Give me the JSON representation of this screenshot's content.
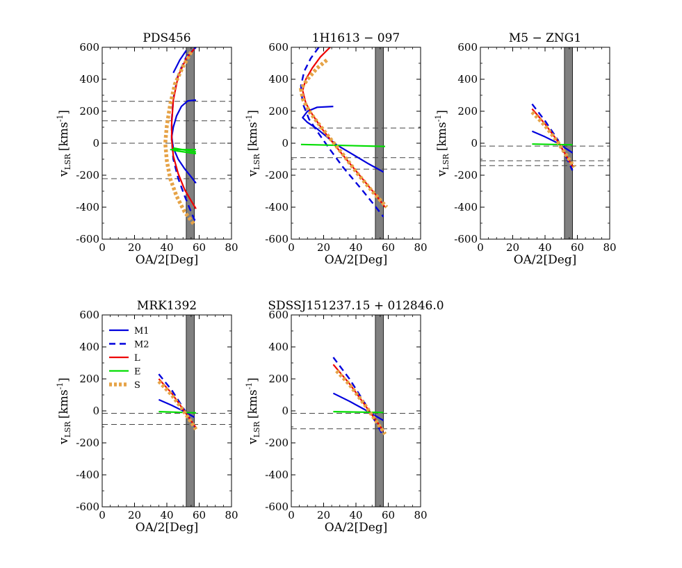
{
  "figure": {
    "background": "#ffffff"
  },
  "colors": {
    "M1": "#0000dd",
    "M2": "#0000dd",
    "L": "#ee0000",
    "E": "#00dd00",
    "S": "#e6a347",
    "band": "#808080",
    "hline": "#444444"
  },
  "legend": {
    "panel": 3,
    "items": [
      {
        "key": "M1",
        "label": "M1",
        "style": "solid"
      },
      {
        "key": "M2",
        "label": "M2",
        "style": "dashed"
      },
      {
        "key": "L",
        "label": "L",
        "style": "solid"
      },
      {
        "key": "E",
        "label": "E",
        "style": "solid"
      },
      {
        "key": "S",
        "label": "S",
        "style": "dotted"
      }
    ]
  },
  "chart_data": [
    {
      "type": "line",
      "title": "PDS456",
      "xlabel": "OA/2[Deg]",
      "ylabel": "v",
      "ylabel_sub": "LSR",
      "ylabel_unit": "[kms",
      "ylabel_sup": "-1",
      "ylabel_close": "]",
      "xlim": [
        0,
        80
      ],
      "ylim": [
        -600,
        600
      ],
      "xticks": [
        0,
        20,
        40,
        60,
        80
      ],
      "yticks": [
        -600,
        -400,
        -200,
        0,
        200,
        400,
        600
      ],
      "xticklabels": [
        "0",
        "20",
        "40",
        "60",
        "80"
      ],
      "yticklabels": [
        "-600",
        "-400",
        "-200",
        "0",
        "200",
        "400",
        "600"
      ],
      "band": [
        52,
        57
      ],
      "hlines": [
        262,
        140,
        0,
        -222
      ],
      "series": [
        {
          "key": "M1",
          "name": "M1",
          "points": [
            [
              58,
              270
            ],
            [
              53,
              265
            ],
            [
              49,
              230
            ],
            [
              46,
              170
            ],
            [
              44,
              100
            ],
            [
              43,
              40
            ],
            [
              44,
              -30
            ],
            [
              47,
              -100
            ],
            [
              51,
              -160
            ],
            [
              55,
              -210
            ],
            [
              58,
              -250
            ]
          ]
        },
        {
          "key": "M1",
          "name": "M1",
          "points": [
            [
              44,
              440
            ],
            [
              48,
              520
            ],
            [
              52,
              580
            ]
          ]
        },
        {
          "key": "M2",
          "name": "M2",
          "points": [
            [
              58,
              600
            ],
            [
              52,
              540
            ],
            [
              47,
              430
            ],
            [
              44,
              280
            ],
            [
              43,
              140
            ],
            [
              43,
              20
            ],
            [
              44,
              -100
            ],
            [
              47,
              -220
            ],
            [
              51,
              -330
            ],
            [
              55,
              -430
            ],
            [
              58,
              -500
            ]
          ]
        },
        {
          "key": "L",
          "name": "L",
          "points": [
            [
              57,
              590
            ],
            [
              52,
              530
            ],
            [
              47,
              420
            ],
            [
              44,
              270
            ],
            [
              43,
              130
            ],
            [
              43,
              20
            ],
            [
              44,
              -80
            ],
            [
              47,
              -190
            ],
            [
              51,
              -290
            ],
            [
              55,
              -360
            ],
            [
              58,
              -410
            ]
          ]
        },
        {
          "key": "E",
          "name": "E",
          "points": [
            [
              42,
              -40
            ],
            [
              58,
              -40
            ]
          ]
        },
        {
          "key": "E",
          "name": "E",
          "points": [
            [
              44,
              -30
            ],
            [
              58,
              -55
            ]
          ]
        },
        {
          "key": "E",
          "name": "E",
          "points": [
            [
              44,
              -45
            ],
            [
              58,
              -65
            ]
          ]
        },
        {
          "key": "S",
          "name": "S",
          "points": [
            [
              55,
              570
            ],
            [
              50,
              480
            ],
            [
              45,
              370
            ],
            [
              42,
              240
            ],
            [
              40,
              110
            ],
            [
              39,
              0
            ],
            [
              40,
              -110
            ],
            [
              42,
              -220
            ],
            [
              46,
              -330
            ],
            [
              51,
              -430
            ],
            [
              57,
              -510
            ]
          ]
        }
      ]
    },
    {
      "type": "line",
      "title": "1H1613 − 097",
      "xlabel": "OA/2[Deg]",
      "ylabel": "v",
      "ylabel_sub": "LSR",
      "ylabel_unit": "[kms",
      "ylabel_sup": "-1",
      "ylabel_close": "]",
      "xlim": [
        0,
        80
      ],
      "ylim": [
        -600,
        600
      ],
      "xticks": [
        0,
        20,
        40,
        60,
        80
      ],
      "yticks": [
        -600,
        -400,
        -200,
        0,
        200,
        400,
        600
      ],
      "xticklabels": [
        "0",
        "20",
        "40",
        "60",
        "80"
      ],
      "yticklabels": [
        "-600",
        "-400",
        "-200",
        "0",
        "200",
        "400",
        "600"
      ],
      "band": [
        52,
        57
      ],
      "hlines": [
        95,
        -90,
        -162
      ],
      "series": [
        {
          "key": "M1",
          "name": "M1",
          "points": [
            [
              26,
              230
            ],
            [
              16,
              225
            ],
            [
              10,
              200
            ],
            [
              7,
              160
            ],
            [
              10,
              130
            ],
            [
              16,
              90
            ],
            [
              22,
              40
            ],
            [
              28,
              -10
            ],
            [
              38,
              -70
            ],
            [
              48,
              -130
            ],
            [
              57,
              -180
            ]
          ]
        },
        {
          "key": "M2",
          "name": "M2",
          "points": [
            [
              17,
              600
            ],
            [
              12,
              530
            ],
            [
              8,
              450
            ],
            [
              6,
              360
            ],
            [
              7,
              250
            ],
            [
              11,
              150
            ],
            [
              17,
              60
            ],
            [
              24,
              -40
            ],
            [
              32,
              -150
            ],
            [
              42,
              -270
            ],
            [
              50,
              -370
            ],
            [
              57,
              -460
            ]
          ]
        },
        {
          "key": "L",
          "name": "L",
          "points": [
            [
              24,
              600
            ],
            [
              18,
              540
            ],
            [
              13,
              470
            ],
            [
              9,
              400
            ],
            [
              7,
              330
            ],
            [
              9,
              250
            ],
            [
              13,
              180
            ],
            [
              19,
              90
            ],
            [
              26,
              0
            ],
            [
              34,
              -100
            ],
            [
              43,
              -210
            ],
            [
              52,
              -320
            ],
            [
              58,
              -400
            ]
          ]
        },
        {
          "key": "E",
          "name": "E",
          "points": [
            [
              6,
              -8
            ],
            [
              58,
              -20
            ]
          ]
        },
        {
          "key": "S",
          "name": "S",
          "points": [
            [
              22,
              520
            ],
            [
              16,
              470
            ],
            [
              10,
              400
            ],
            [
              6,
              340
            ],
            [
              7,
              280
            ],
            [
              11,
              200
            ],
            [
              17,
              120
            ],
            [
              24,
              30
            ],
            [
              32,
              -70
            ],
            [
              41,
              -190
            ],
            [
              50,
              -300
            ],
            [
              59,
              -400
            ]
          ]
        }
      ]
    },
    {
      "type": "line",
      "title": "M5 − ZNG1",
      "xlabel": "OA/2[Deg]",
      "ylabel": "v",
      "ylabel_sub": "LSR",
      "ylabel_unit": "[kms",
      "ylabel_sup": "-1",
      "ylabel_close": "]",
      "xlim": [
        0,
        80
      ],
      "ylim": [
        -600,
        600
      ],
      "xticks": [
        0,
        20,
        40,
        60,
        80
      ],
      "yticks": [
        -600,
        -400,
        -200,
        0,
        200,
        400,
        600
      ],
      "xticklabels": [
        "0",
        "20",
        "40",
        "60",
        "80"
      ],
      "yticklabels": [
        "-600",
        "-400",
        "-200",
        "0",
        "200",
        "400",
        "600"
      ],
      "band": [
        52,
        57
      ],
      "hlines": [
        -18,
        -110,
        -140
      ],
      "series": [
        {
          "key": "M1",
          "name": "M1",
          "points": [
            [
              32,
              75
            ],
            [
              40,
              40
            ],
            [
              48,
              0
            ],
            [
              57,
              -60
            ]
          ]
        },
        {
          "key": "M2",
          "name": "M2",
          "points": [
            [
              32,
              245
            ],
            [
              40,
              140
            ],
            [
              48,
              20
            ],
            [
              57,
              -170
            ]
          ]
        },
        {
          "key": "L",
          "name": "L",
          "points": [
            [
              32,
              215
            ],
            [
              40,
              120
            ],
            [
              48,
              10
            ],
            [
              57,
              -145
            ]
          ]
        },
        {
          "key": "E",
          "name": "E",
          "points": [
            [
              32,
              -5
            ],
            [
              57,
              -10
            ]
          ]
        },
        {
          "key": "S",
          "name": "S",
          "points": [
            [
              32,
              195
            ],
            [
              40,
              110
            ],
            [
              48,
              5
            ],
            [
              58,
              -150
            ]
          ]
        }
      ]
    },
    {
      "type": "line",
      "title": "MRK1392",
      "xlabel": "OA/2[Deg]",
      "ylabel": "v",
      "ylabel_sub": "LSR",
      "ylabel_unit": "[kms",
      "ylabel_sup": "-1",
      "ylabel_close": "]",
      "xlim": [
        0,
        80
      ],
      "ylim": [
        -600,
        600
      ],
      "xticks": [
        0,
        20,
        40,
        60,
        80
      ],
      "yticks": [
        -600,
        -400,
        -200,
        0,
        200,
        400,
        600
      ],
      "xticklabels": [
        "0",
        "20",
        "40",
        "60",
        "80"
      ],
      "yticklabels": [
        "-600",
        "-400",
        "-200",
        "0",
        "200",
        "400",
        "600"
      ],
      "band": [
        52,
        57
      ],
      "hlines": [
        -15,
        -85
      ],
      "series": [
        {
          "key": "M1",
          "name": "M1",
          "points": [
            [
              35,
              70
            ],
            [
              43,
              35
            ],
            [
              50,
              0
            ],
            [
              57,
              -40
            ]
          ]
        },
        {
          "key": "M2",
          "name": "M2",
          "points": [
            [
              35,
              230
            ],
            [
              43,
              130
            ],
            [
              50,
              20
            ],
            [
              58,
              -110
            ]
          ]
        },
        {
          "key": "L",
          "name": "L",
          "points": [
            [
              35,
              200
            ],
            [
              43,
              110
            ],
            [
              50,
              10
            ],
            [
              58,
              -105
            ]
          ]
        },
        {
          "key": "E",
          "name": "E",
          "points": [
            [
              35,
              -5
            ],
            [
              58,
              -12
            ]
          ]
        },
        {
          "key": "S",
          "name": "S",
          "points": [
            [
              35,
              185
            ],
            [
              43,
              100
            ],
            [
              50,
              5
            ],
            [
              58,
              -115
            ]
          ]
        }
      ]
    },
    {
      "type": "line",
      "title": "SDSSJ151237.15 + 012846.0",
      "xlabel": "OA/2[Deg]",
      "ylabel": "v",
      "ylabel_sub": "LSR",
      "ylabel_unit": "[kms",
      "ylabel_sup": "-1",
      "ylabel_close": "]",
      "xlim": [
        0,
        80
      ],
      "ylim": [
        -600,
        600
      ],
      "xticks": [
        0,
        20,
        40,
        60,
        80
      ],
      "yticks": [
        -600,
        -400,
        -200,
        0,
        200,
        400,
        600
      ],
      "xticklabels": [
        "0",
        "20",
        "40",
        "60",
        "80"
      ],
      "yticklabels": [
        "-600",
        "-400",
        "-200",
        "0",
        "200",
        "400",
        "600"
      ],
      "band": [
        52,
        57
      ],
      "hlines": [
        -15,
        -112
      ],
      "series": [
        {
          "key": "M1",
          "name": "M1",
          "points": [
            [
              26,
              110
            ],
            [
              36,
              60
            ],
            [
              46,
              5
            ],
            [
              57,
              -60
            ]
          ]
        },
        {
          "key": "M2",
          "name": "M2",
          "points": [
            [
              26,
              335
            ],
            [
              36,
              200
            ],
            [
              46,
              40
            ],
            [
              56,
              -140
            ]
          ]
        },
        {
          "key": "L",
          "name": "L",
          "points": [
            [
              26,
              290
            ],
            [
              36,
              170
            ],
            [
              46,
              30
            ],
            [
              57,
              -125
            ]
          ]
        },
        {
          "key": "E",
          "name": "E",
          "points": [
            [
              26,
              -5
            ],
            [
              57,
              -10
            ]
          ]
        },
        {
          "key": "S",
          "name": "S",
          "points": [
            [
              28,
              250
            ],
            [
              36,
              165
            ],
            [
              46,
              30
            ],
            [
              58,
              -145
            ]
          ]
        }
      ]
    }
  ]
}
